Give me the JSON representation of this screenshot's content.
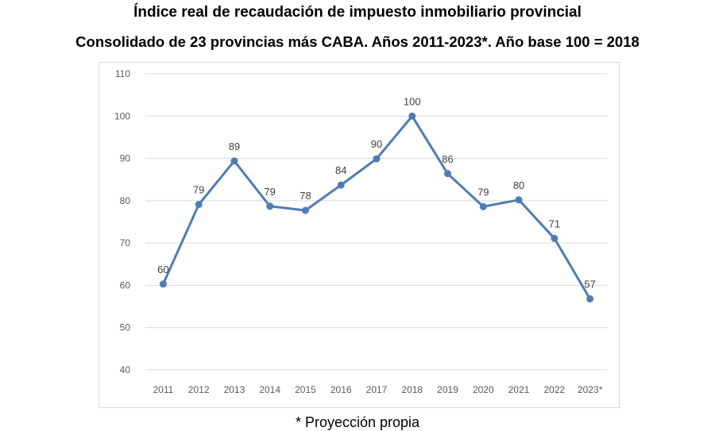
{
  "header": {
    "title": "Índice real de recaudación de impuesto inmobiliario provincial",
    "subtitle": "Consolidado de 23 provincias más CABA. Años 2011-2023*.  Año base 100 = 2018"
  },
  "chart_data": {
    "type": "line",
    "categories": [
      "2011",
      "2012",
      "2013",
      "2014",
      "2015",
      "2016",
      "2017",
      "2018",
      "2019",
      "2020",
      "2021",
      "2022",
      "2023*"
    ],
    "series": [
      {
        "values": [
          60.3,
          79.1,
          89.4,
          78.7,
          77.7,
          83.7,
          89.9,
          100,
          86.4,
          78.6,
          80.2,
          71.1,
          56.8
        ],
        "labels": [
          "60",
          "79",
          "89",
          "79",
          "78",
          "84",
          "90",
          "100",
          "86",
          "79",
          "80",
          "71",
          "57"
        ],
        "color": "#4f7cb4"
      }
    ],
    "ylim": [
      40,
      110
    ],
    "yticks": [
      40,
      50,
      60,
      70,
      80,
      90,
      100,
      110
    ],
    "ytick_labels": [
      "40",
      "50",
      "60",
      "70",
      "80",
      "90",
      "100",
      "110"
    ],
    "grid": true,
    "legend": "none",
    "xlabel": "",
    "ylabel": ""
  },
  "footnote": "* Proyección propia",
  "colors": {
    "line": "#4f7cb4",
    "grid": "#d9d9d9",
    "tick_text": "#595959"
  }
}
